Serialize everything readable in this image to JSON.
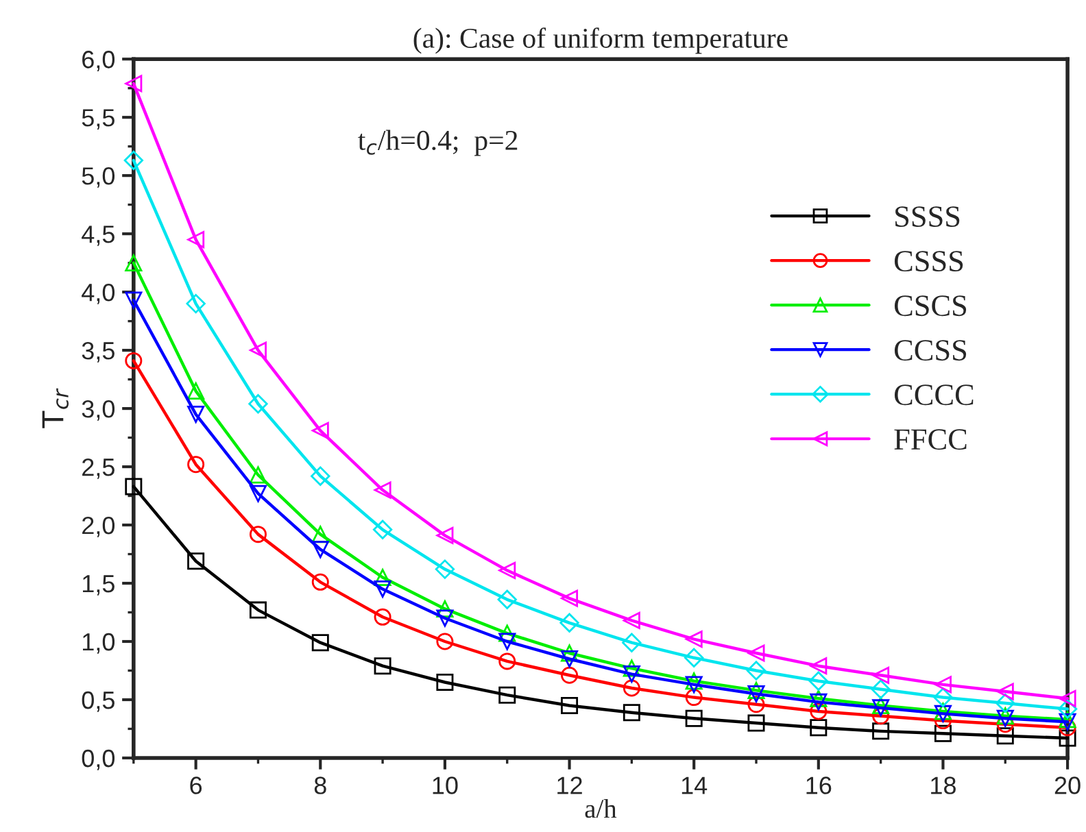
{
  "chart_data": {
    "type": "line",
    "title": "(a): Case of uniform temperature",
    "xlabel": "a/h",
    "ylabel": "T$_{cr}$",
    "annotations": [
      "t$_{c}$/h=0.4;  p=2"
    ],
    "x": [
      5,
      6,
      7,
      8,
      9,
      10,
      11,
      12,
      13,
      14,
      15,
      16,
      17,
      18,
      19,
      20
    ],
    "series": [
      {
        "name": "SSSS",
        "color": "#000000",
        "marker": "square",
        "values": [
          2.33,
          1.69,
          1.27,
          0.99,
          0.79,
          0.65,
          0.54,
          0.45,
          0.39,
          0.34,
          0.3,
          0.26,
          0.23,
          0.21,
          0.19,
          0.17
        ]
      },
      {
        "name": "CSSS",
        "color": "#ff0000",
        "marker": "circle",
        "values": [
          3.41,
          2.52,
          1.92,
          1.51,
          1.21,
          1.0,
          0.83,
          0.71,
          0.6,
          0.52,
          0.46,
          0.4,
          0.36,
          0.32,
          0.29,
          0.26
        ]
      },
      {
        "name": "CSCS",
        "color": "#00ee00",
        "marker": "triangle",
        "values": [
          4.25,
          3.15,
          2.43,
          1.92,
          1.55,
          1.28,
          1.07,
          0.9,
          0.77,
          0.66,
          0.58,
          0.51,
          0.45,
          0.4,
          0.36,
          0.33
        ]
      },
      {
        "name": "CCSS",
        "color": "#0000ff",
        "marker": "triangle-down",
        "values": [
          3.93,
          2.95,
          2.27,
          1.79,
          1.45,
          1.2,
          1.0,
          0.85,
          0.72,
          0.63,
          0.55,
          0.48,
          0.43,
          0.38,
          0.34,
          0.31
        ]
      },
      {
        "name": "CCCC",
        "color": "#00e5ee",
        "marker": "diamond",
        "values": [
          5.13,
          3.9,
          3.04,
          2.42,
          1.96,
          1.62,
          1.36,
          1.16,
          0.99,
          0.86,
          0.75,
          0.66,
          0.59,
          0.52,
          0.47,
          0.42
        ]
      },
      {
        "name": "FFCC",
        "color": "#ff00ff",
        "marker": "triangle-left",
        "values": [
          5.79,
          4.45,
          3.5,
          2.81,
          2.3,
          1.91,
          1.61,
          1.37,
          1.18,
          1.02,
          0.9,
          0.79,
          0.71,
          0.63,
          0.57,
          0.51
        ]
      }
    ],
    "xlim": [
      5,
      20
    ],
    "xticks": [
      6,
      8,
      10,
      12,
      14,
      16,
      18,
      20
    ],
    "ylim": [
      0,
      6
    ],
    "yticks": [
      {
        "value": 0,
        "label": "0,0"
      },
      {
        "value": 0.5,
        "label": "0,5"
      },
      {
        "value": 1,
        "label": "1,0"
      },
      {
        "value": 1.5,
        "label": "1,5"
      },
      {
        "value": 2,
        "label": "2,0"
      },
      {
        "value": 2.5,
        "label": "2,5"
      },
      {
        "value": 3,
        "label": "3,0"
      },
      {
        "value": 3.5,
        "label": "3,5"
      },
      {
        "value": 4,
        "label": "4,0"
      },
      {
        "value": 4.5,
        "label": "4,5"
      },
      {
        "value": 5,
        "label": "5,0"
      },
      {
        "value": 5.5,
        "label": "5,5"
      },
      {
        "value": 6,
        "label": "6,0"
      }
    ],
    "grid": false,
    "legend": "top right",
    "line_style": "solid"
  }
}
